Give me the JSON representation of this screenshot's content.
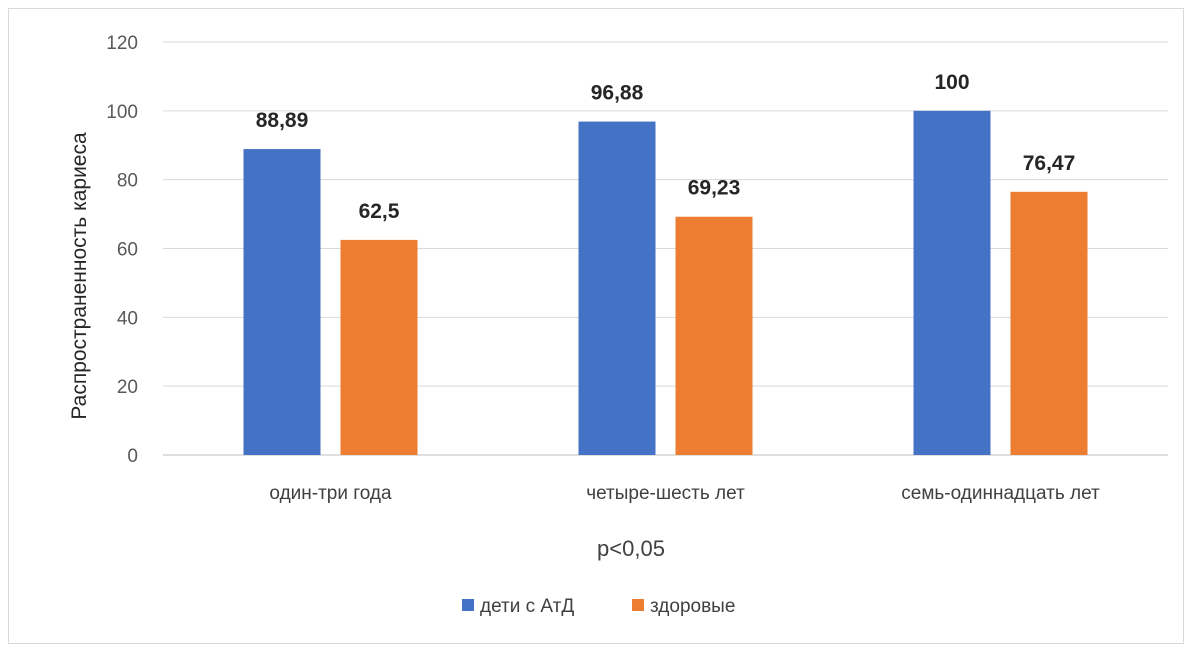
{
  "chart_data": {
    "type": "bar",
    "categories": [
      "один-три года",
      "четыре-шесть лет",
      "семь-одиннадцать лет"
    ],
    "series": [
      {
        "name": "дети с АтД",
        "values": [
          88.89,
          96.88,
          100
        ],
        "labels": [
          "88,89",
          "96,88",
          "100"
        ],
        "color": "#4472C4"
      },
      {
        "name": "здоровые",
        "values": [
          62.5,
          69.23,
          76.47
        ],
        "labels": [
          "62,5",
          "69,23",
          "76,47"
        ],
        "color": "#ED7D31"
      }
    ],
    "title": "",
    "xlabel": "",
    "ylabel": "Распространенность кариеса",
    "ylim": [
      0,
      120
    ],
    "yticks": [
      0,
      20,
      40,
      60,
      80,
      100,
      120
    ],
    "grid": true,
    "legend_position": "bottom",
    "note": "p<0,05"
  }
}
